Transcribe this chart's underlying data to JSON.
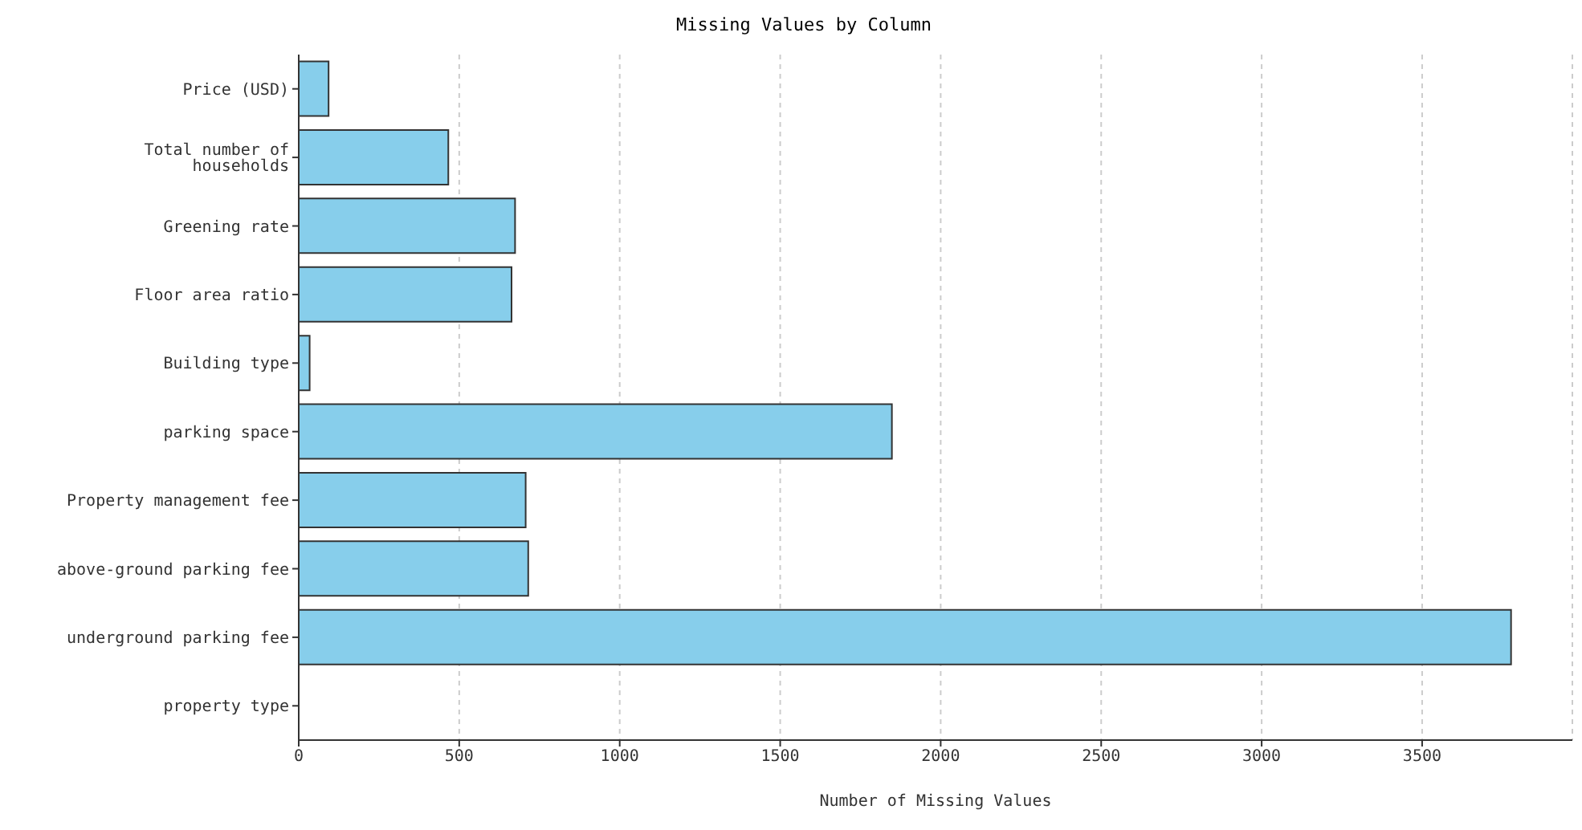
{
  "chart_data": {
    "type": "bar",
    "orientation": "horizontal",
    "title": "Missing Values by Column",
    "xlabel": "Number of Missing Values",
    "categories": [
      "Price (USD)",
      "Total number of households",
      "Greening rate",
      "Floor area ratio",
      "Building type",
      "parking space",
      "Property management fee",
      "above-ground parking fee",
      "underground parking fee",
      "property type"
    ],
    "values": [
      93,
      466,
      674,
      663,
      34,
      1848,
      707,
      715,
      3777,
      0
    ],
    "color": "#87ceeb",
    "xlim": [
      0,
      3968
    ],
    "xticks": [
      0,
      500,
      1000,
      1500,
      2000,
      2500,
      3000,
      3500
    ],
    "grid": "x"
  }
}
